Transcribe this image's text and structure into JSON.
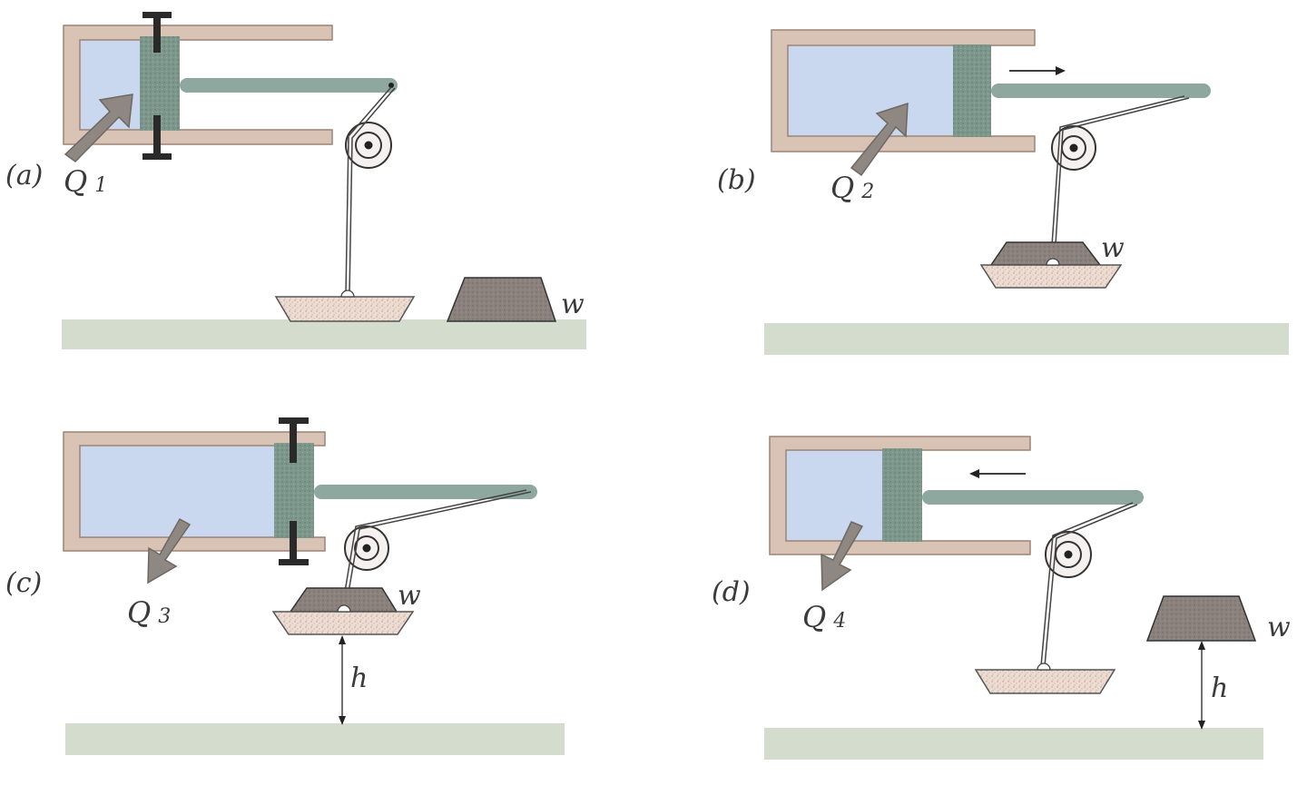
{
  "colors": {
    "cylinder_wall": "#d8c3b4",
    "cylinder_edge": "#9c8476",
    "gas": "#c9d8ee",
    "piston": "#7f9a90",
    "rod": "#8ea8a0",
    "ground": "#d4dccd",
    "weight": "#8e8580",
    "pan": "#eadbd1",
    "arrow": "#8f8882",
    "stop": "#2a2a2a"
  },
  "panels": [
    {
      "id": "a",
      "label": "(a)",
      "heat": "Q",
      "heat_sub": "1",
      "weight_label": "w",
      "motion": "none",
      "stops": true
    },
    {
      "id": "b",
      "label": "(b)",
      "heat": "Q",
      "heat_sub": "2",
      "weight_label": "w",
      "motion": "right",
      "stops": false
    },
    {
      "id": "c",
      "label": "(c)",
      "heat": "Q",
      "heat_sub": "3",
      "weight_label": "w",
      "height_label": "h",
      "motion": "none",
      "stops": true
    },
    {
      "id": "d",
      "label": "(d)",
      "heat": "Q",
      "heat_sub": "4",
      "weight_label": "w",
      "height_label": "h",
      "motion": "left",
      "stops": false
    }
  ]
}
